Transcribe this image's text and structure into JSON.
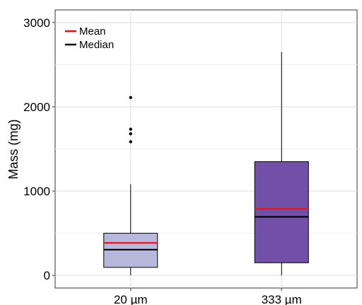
{
  "chart_data": {
    "type": "box",
    "title": "",
    "xlabel": "",
    "ylabel": "Mass (mg)",
    "ylim": [
      -150,
      3150
    ],
    "yticks": [
      0,
      1000,
      2000,
      3000
    ],
    "ytick_labels": [
      "0",
      "1000",
      "2000",
      "3000"
    ],
    "grid": true,
    "legend": {
      "placement": "top-left",
      "entries": [
        {
          "label": "Mean",
          "color": "#e8141c"
        },
        {
          "label": "Median",
          "color": "#000000"
        }
      ]
    },
    "categories": [
      "20 µm",
      "333 µm"
    ],
    "boxes": [
      {
        "category": "20 µm",
        "fill": "#b8b8dc",
        "whisker_low": 0,
        "q1": 95,
        "median": 305,
        "mean": 385,
        "q3": 500,
        "whisker_high": 1080,
        "outliers": [
          1585,
          1680,
          1735,
          2110
        ]
      },
      {
        "category": "333 µm",
        "fill": "#7350a8",
        "whisker_low": 0,
        "q1": 150,
        "median": 695,
        "mean": 790,
        "q3": 1350,
        "whisker_high": 2650,
        "outliers": []
      }
    ]
  }
}
